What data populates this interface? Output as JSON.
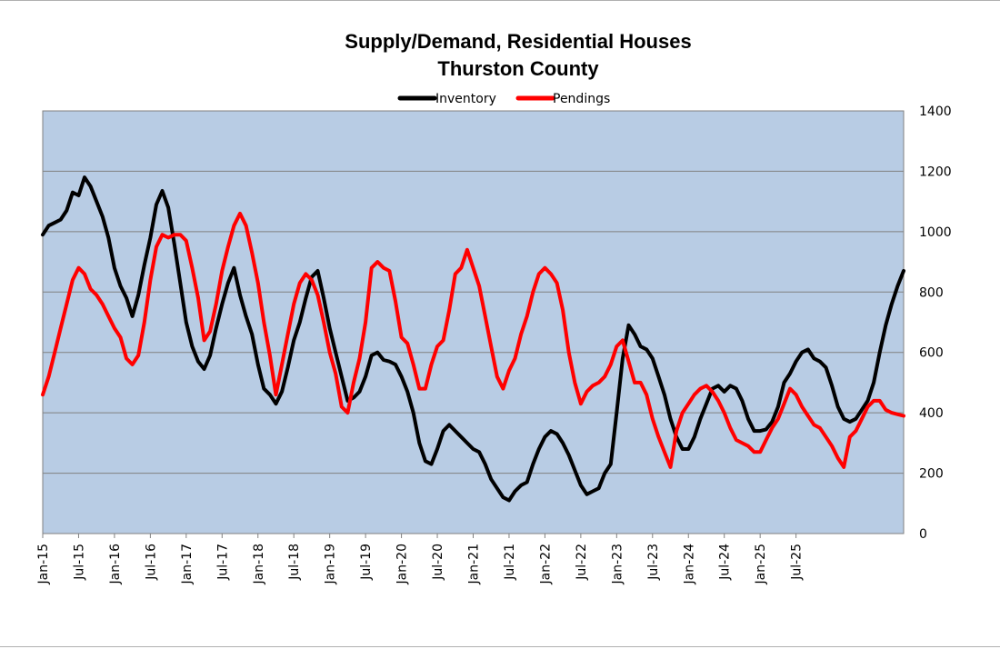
{
  "chart_data": {
    "type": "line",
    "title": [
      "Supply/Demand, Residential Houses",
      "Thurston County"
    ],
    "xlabel": "",
    "ylabel": "",
    "y_axis_position": "right",
    "ylim": [
      0,
      1400
    ],
    "yticks": [
      0,
      200,
      400,
      600,
      800,
      1000,
      1200,
      1400
    ],
    "xticks": [
      "Jan-15",
      "Jul-15",
      "Jan-16",
      "Jul-16",
      "Jan-17",
      "Jul-17",
      "Jan-18",
      "Jul-18",
      "Jan-19",
      "Jul-19",
      "Jan-20",
      "Jul-20",
      "Jan-21",
      "Jul-21",
      "Jan-22",
      "Jul-22",
      "Jan-23",
      "Jul-23",
      "Jan-24",
      "Jul-24",
      "Jan-25",
      "Jul-25"
    ],
    "grid": true,
    "legend_position": "top-center",
    "plot_background": "#b8cce4",
    "x_unit": "months since Jan-15",
    "series": [
      {
        "name": "Inventory",
        "color": "#000000",
        "points": [
          [
            0,
            990
          ],
          [
            1,
            1020
          ],
          [
            2,
            1030
          ],
          [
            3,
            1040
          ],
          [
            4,
            1070
          ],
          [
            5,
            1130
          ],
          [
            6,
            1120
          ],
          [
            7,
            1180
          ],
          [
            8,
            1150
          ],
          [
            9,
            1100
          ],
          [
            10,
            1050
          ],
          [
            11,
            980
          ],
          [
            12,
            880
          ],
          [
            13,
            820
          ],
          [
            14,
            780
          ],
          [
            15,
            720
          ],
          [
            16,
            790
          ],
          [
            17,
            890
          ],
          [
            18,
            980
          ],
          [
            19,
            1090
          ],
          [
            20,
            1135
          ],
          [
            21,
            1080
          ],
          [
            22,
            960
          ],
          [
            23,
            830
          ],
          [
            24,
            700
          ],
          [
            25,
            620
          ],
          [
            26,
            570
          ],
          [
            27,
            545
          ],
          [
            28,
            590
          ],
          [
            29,
            680
          ],
          [
            30,
            760
          ],
          [
            31,
            830
          ],
          [
            32,
            880
          ],
          [
            33,
            790
          ],
          [
            34,
            720
          ],
          [
            35,
            660
          ],
          [
            36,
            560
          ],
          [
            37,
            480
          ],
          [
            38,
            460
          ],
          [
            39,
            430
          ],
          [
            40,
            470
          ],
          [
            41,
            550
          ],
          [
            42,
            640
          ],
          [
            43,
            700
          ],
          [
            44,
            780
          ],
          [
            45,
            850
          ],
          [
            46,
            870
          ],
          [
            47,
            780
          ],
          [
            48,
            680
          ],
          [
            49,
            600
          ],
          [
            50,
            520
          ],
          [
            51,
            440
          ],
          [
            52,
            450
          ],
          [
            53,
            470
          ],
          [
            54,
            520
          ],
          [
            55,
            590
          ],
          [
            56,
            600
          ],
          [
            57,
            575
          ],
          [
            58,
            570
          ],
          [
            59,
            560
          ],
          [
            60,
            520
          ],
          [
            61,
            470
          ],
          [
            62,
            400
          ],
          [
            63,
            300
          ],
          [
            64,
            240
          ],
          [
            65,
            230
          ],
          [
            66,
            280
          ],
          [
            67,
            340
          ],
          [
            68,
            360
          ],
          [
            69,
            340
          ],
          [
            70,
            320
          ],
          [
            71,
            300
          ],
          [
            72,
            280
          ],
          [
            73,
            270
          ],
          [
            74,
            230
          ],
          [
            75,
            180
          ],
          [
            76,
            150
          ],
          [
            77,
            120
          ],
          [
            78,
            110
          ],
          [
            79,
            140
          ],
          [
            80,
            160
          ],
          [
            81,
            170
          ],
          [
            82,
            230
          ],
          [
            83,
            280
          ],
          [
            84,
            320
          ],
          [
            85,
            340
          ],
          [
            86,
            330
          ],
          [
            87,
            300
          ],
          [
            88,
            260
          ],
          [
            89,
            210
          ],
          [
            90,
            160
          ],
          [
            91,
            130
          ],
          [
            92,
            140
          ],
          [
            93,
            150
          ],
          [
            94,
            200
          ],
          [
            95,
            230
          ],
          [
            96,
            400
          ],
          [
            97,
            580
          ],
          [
            98,
            690
          ],
          [
            99,
            660
          ],
          [
            100,
            620
          ],
          [
            101,
            610
          ],
          [
            102,
            580
          ],
          [
            103,
            520
          ],
          [
            104,
            460
          ],
          [
            105,
            380
          ],
          [
            106,
            320
          ],
          [
            107,
            280
          ],
          [
            108,
            280
          ],
          [
            109,
            320
          ],
          [
            110,
            380
          ],
          [
            111,
            430
          ],
          [
            112,
            480
          ],
          [
            113,
            490
          ],
          [
            114,
            470
          ],
          [
            115,
            490
          ],
          [
            116,
            480
          ],
          [
            117,
            440
          ],
          [
            118,
            380
          ],
          [
            119,
            340
          ],
          [
            120,
            340
          ],
          [
            121,
            345
          ],
          [
            122,
            370
          ],
          [
            123,
            420
          ],
          [
            124,
            500
          ],
          [
            125,
            530
          ],
          [
            126,
            570
          ],
          [
            127,
            600
          ],
          [
            128,
            610
          ],
          [
            129,
            580
          ],
          [
            130,
            570
          ],
          [
            131,
            550
          ],
          [
            132,
            490
          ],
          [
            133,
            420
          ],
          [
            134,
            380
          ],
          [
            135,
            370
          ],
          [
            136,
            380
          ],
          [
            137,
            410
          ],
          [
            138,
            440
          ],
          [
            139,
            500
          ],
          [
            140,
            600
          ],
          [
            141,
            690
          ],
          [
            142,
            760
          ],
          [
            143,
            820
          ],
          [
            144,
            870
          ]
        ]
      },
      {
        "name": "Pendings",
        "color": "#ff0000",
        "points": [
          [
            0,
            460
          ],
          [
            1,
            520
          ],
          [
            2,
            600
          ],
          [
            3,
            680
          ],
          [
            4,
            760
          ],
          [
            5,
            840
          ],
          [
            6,
            880
          ],
          [
            7,
            860
          ],
          [
            8,
            810
          ],
          [
            9,
            790
          ],
          [
            10,
            760
          ],
          [
            11,
            720
          ],
          [
            12,
            680
          ],
          [
            13,
            650
          ],
          [
            14,
            580
          ],
          [
            15,
            560
          ],
          [
            16,
            590
          ],
          [
            17,
            700
          ],
          [
            18,
            840
          ],
          [
            19,
            950
          ],
          [
            20,
            990
          ],
          [
            21,
            980
          ],
          [
            22,
            990
          ],
          [
            23,
            990
          ],
          [
            24,
            970
          ],
          [
            25,
            880
          ],
          [
            26,
            780
          ],
          [
            27,
            640
          ],
          [
            28,
            670
          ],
          [
            29,
            760
          ],
          [
            30,
            870
          ],
          [
            31,
            950
          ],
          [
            32,
            1020
          ],
          [
            33,
            1060
          ],
          [
            34,
            1020
          ],
          [
            35,
            930
          ],
          [
            36,
            830
          ],
          [
            37,
            700
          ],
          [
            38,
            590
          ],
          [
            39,
            460
          ],
          [
            40,
            560
          ],
          [
            41,
            660
          ],
          [
            42,
            760
          ],
          [
            43,
            830
          ],
          [
            44,
            860
          ],
          [
            45,
            840
          ],
          [
            46,
            790
          ],
          [
            47,
            700
          ],
          [
            48,
            600
          ],
          [
            49,
            530
          ],
          [
            50,
            420
          ],
          [
            51,
            400
          ],
          [
            52,
            500
          ],
          [
            53,
            580
          ],
          [
            54,
            700
          ],
          [
            55,
            880
          ],
          [
            56,
            900
          ],
          [
            57,
            880
          ],
          [
            58,
            870
          ],
          [
            59,
            770
          ],
          [
            60,
            650
          ],
          [
            61,
            630
          ],
          [
            62,
            560
          ],
          [
            63,
            480
          ],
          [
            64,
            480
          ],
          [
            65,
            560
          ],
          [
            66,
            620
          ],
          [
            67,
            640
          ],
          [
            68,
            740
          ],
          [
            69,
            860
          ],
          [
            70,
            880
          ],
          [
            71,
            940
          ],
          [
            72,
            880
          ],
          [
            73,
            820
          ],
          [
            74,
            720
          ],
          [
            75,
            620
          ],
          [
            76,
            520
          ],
          [
            77,
            480
          ],
          [
            78,
            540
          ],
          [
            79,
            580
          ],
          [
            80,
            660
          ],
          [
            81,
            720
          ],
          [
            82,
            800
          ],
          [
            83,
            860
          ],
          [
            84,
            880
          ],
          [
            85,
            860
          ],
          [
            86,
            830
          ],
          [
            87,
            740
          ],
          [
            88,
            600
          ],
          [
            89,
            500
          ],
          [
            90,
            430
          ],
          [
            91,
            470
          ],
          [
            92,
            490
          ],
          [
            93,
            500
          ],
          [
            94,
            520
          ],
          [
            95,
            560
          ],
          [
            96,
            620
          ],
          [
            97,
            640
          ],
          [
            98,
            570
          ],
          [
            99,
            500
          ],
          [
            100,
            500
          ],
          [
            101,
            460
          ],
          [
            102,
            380
          ],
          [
            103,
            320
          ],
          [
            104,
            270
          ],
          [
            105,
            220
          ],
          [
            106,
            340
          ],
          [
            107,
            400
          ],
          [
            108,
            430
          ],
          [
            109,
            460
          ],
          [
            110,
            480
          ],
          [
            111,
            490
          ],
          [
            112,
            470
          ],
          [
            113,
            440
          ],
          [
            114,
            400
          ],
          [
            115,
            350
          ],
          [
            116,
            310
          ],
          [
            117,
            300
          ],
          [
            118,
            290
          ],
          [
            119,
            270
          ],
          [
            120,
            270
          ],
          [
            121,
            310
          ],
          [
            122,
            350
          ],
          [
            123,
            380
          ],
          [
            124,
            430
          ],
          [
            125,
            480
          ],
          [
            126,
            460
          ],
          [
            127,
            420
          ],
          [
            128,
            390
          ],
          [
            129,
            360
          ],
          [
            130,
            350
          ],
          [
            131,
            320
          ],
          [
            132,
            290
          ],
          [
            133,
            250
          ],
          [
            134,
            220
          ],
          [
            135,
            320
          ],
          [
            136,
            340
          ],
          [
            137,
            380
          ],
          [
            138,
            420
          ],
          [
            139,
            440
          ],
          [
            140,
            440
          ],
          [
            141,
            410
          ],
          [
            142,
            400
          ],
          [
            143,
            395
          ],
          [
            144,
            390
          ]
        ]
      }
    ]
  }
}
